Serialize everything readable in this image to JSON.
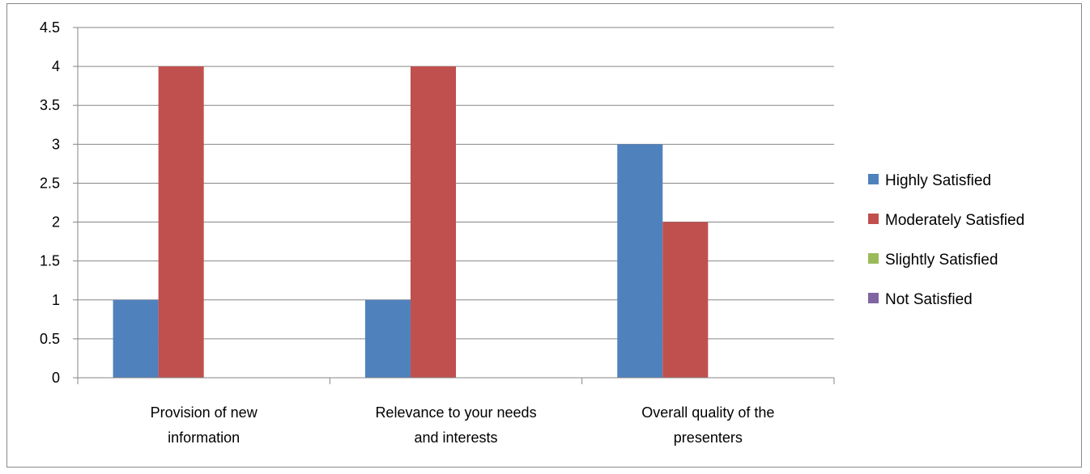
{
  "chart_data": {
    "type": "bar",
    "categories": [
      [
        "Provision of new",
        "information"
      ],
      [
        "Relevance to your needs",
        "and interests"
      ],
      [
        "Overall quality of the",
        "presenters"
      ]
    ],
    "series": [
      {
        "name": "Highly Satisfied",
        "color": "#4F81BD",
        "values": [
          1,
          1,
          3
        ]
      },
      {
        "name": "Moderately Satisfied",
        "color": "#C0504D",
        "values": [
          4,
          4,
          2
        ]
      },
      {
        "name": "Slightly Satisfied",
        "color": "#9BBB59",
        "values": [
          0,
          0,
          0
        ]
      },
      {
        "name": "Not  Satisfied",
        "color": "#8064A2",
        "values": [
          0,
          0,
          0
        ]
      }
    ],
    "ylim": [
      0,
      4.5
    ],
    "yticks": [
      "0",
      "0.5",
      "1",
      "1.5",
      "2",
      "2.5",
      "3",
      "3.5",
      "4",
      "4.5"
    ],
    "grid": true,
    "legend_position": "right",
    "title": "",
    "xlabel": "",
    "ylabel": ""
  }
}
